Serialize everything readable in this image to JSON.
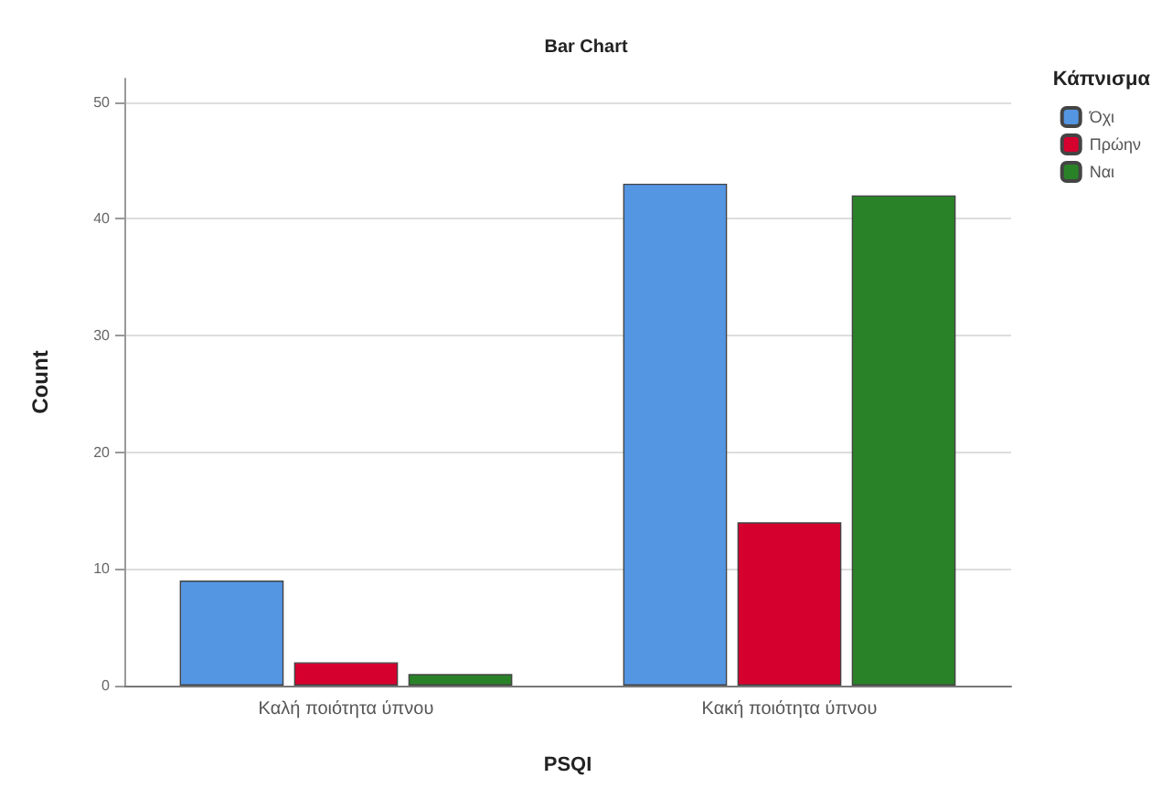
{
  "chart_data": {
    "type": "bar",
    "title": "Bar Chart",
    "xlabel": "PSQI",
    "ylabel": "Count",
    "legend_title": "Κάπνισμα",
    "categories": [
      "Καλή ποιότητα ύπνου",
      "Κακή ποιότητα ύπνου"
    ],
    "series": [
      {
        "name": "Όχι",
        "color": "#5596e3",
        "values": [
          9,
          43
        ]
      },
      {
        "name": "Πρώην",
        "color": "#d6002f",
        "values": [
          2,
          14
        ]
      },
      {
        "name": "Ναι",
        "color": "#2a8228",
        "values": [
          1,
          42
        ]
      }
    ],
    "ylim": [
      0,
      52
    ],
    "yticks": [
      0,
      10,
      20,
      30,
      40,
      50
    ],
    "grid": "y",
    "legend": "top right"
  }
}
